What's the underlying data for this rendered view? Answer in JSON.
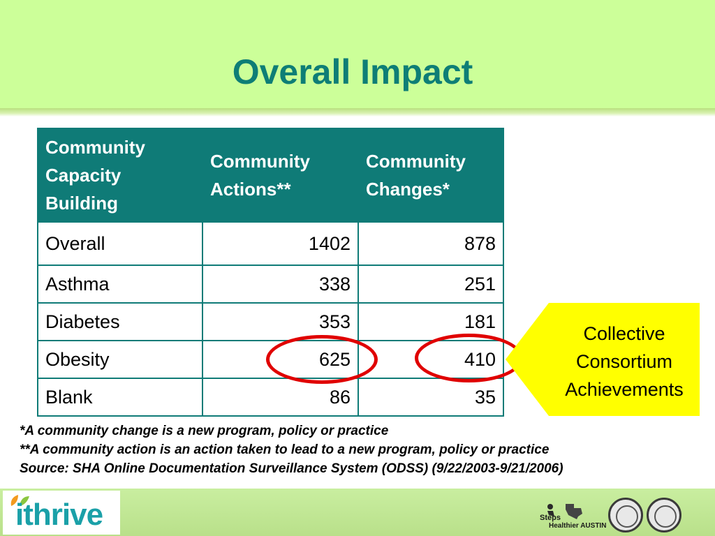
{
  "slide": {
    "title": "Overall Impact"
  },
  "table": {
    "headers": [
      "Community Capacity Building",
      "Community Actions**",
      "Community Changes*"
    ],
    "rows": [
      {
        "label": "Overall",
        "actions": "1402",
        "changes": "878"
      },
      {
        "label": "Asthma",
        "actions": "338",
        "changes": "251"
      },
      {
        "label": "Diabetes",
        "actions": "353",
        "changes": "181"
      },
      {
        "label": "Obesity",
        "actions": "625",
        "changes": "410"
      },
      {
        "label": "Blank",
        "actions": "86",
        "changes": "35"
      }
    ]
  },
  "callout": {
    "lines": [
      "Collective",
      "Consortium",
      "Achievements"
    ],
    "fill": "#ffff00"
  },
  "notes": [
    "*A community change is a new program, policy or practice",
    "**A community action is an action taken to lead to a new program, policy or practice",
    "Source: SHA Online Documentation Surveillance System (ODSS) (9/22/2003-9/21/2006)"
  ],
  "footer": {
    "logo_text": "ithrive",
    "partner_logo": "Steps to a Healthier AUSTIN",
    "partner_logo_main": "Steps",
    "partner_logo_sub": "Healthier AUSTIN",
    "seal_icons": [
      "city-seal-icon",
      "county-seal-icon"
    ]
  },
  "colors": {
    "header_bg": "#ccff99",
    "title": "#0e7e76",
    "table_header_bg": "#0f7b77",
    "highlight_circle": "#e00000"
  }
}
